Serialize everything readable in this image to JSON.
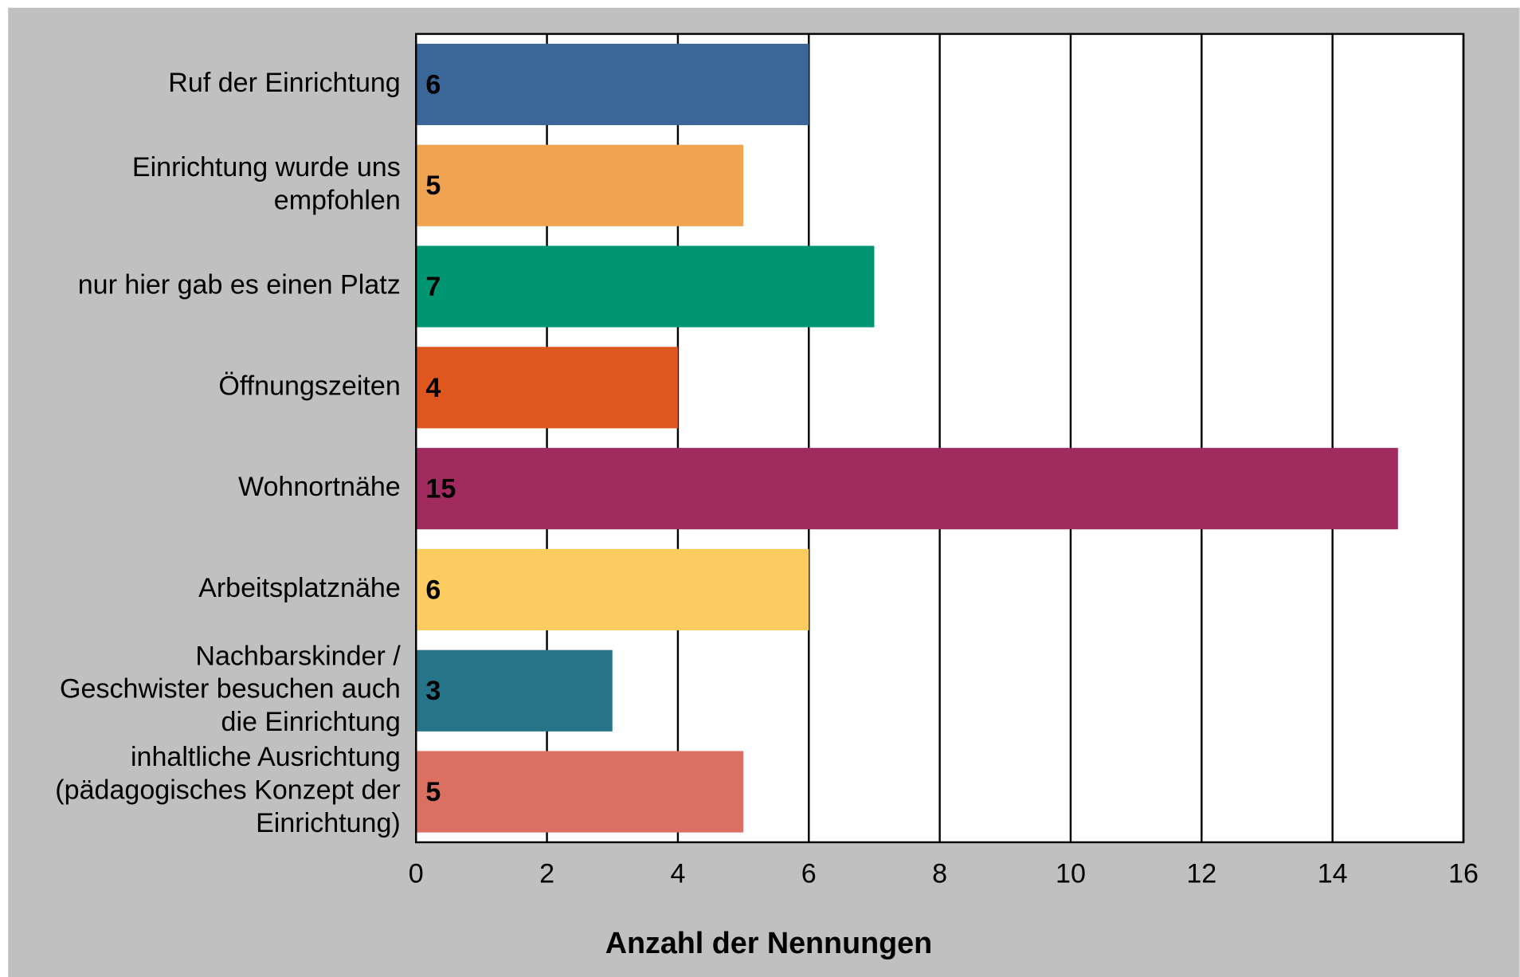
{
  "chart_data": {
    "type": "barh",
    "x_label": "Anzahl der Nennungen",
    "categories": [
      "Ruf der Einrichtung",
      "Einrichtung wurde uns\nempfohlen",
      "nur hier gab es einen Platz",
      "Öffnungszeiten",
      "Wohnortnähe",
      "Arbeitsplatznähe",
      "Nachbarskinder /\nGeschwister besuchen auch\ndie Einrichtung",
      "inhaltliche Ausrichtung\n(pädagogisches Konzept der\nEinrichtung)"
    ],
    "values": [
      6,
      5,
      7,
      4,
      15,
      6,
      3,
      5
    ],
    "colors": [
      "#3a6698",
      "#f0a452",
      "#009672",
      "#de571f",
      "#a12b5f",
      "#fdcc60",
      "#277489",
      "#db7062"
    ],
    "xlim": [
      0,
      16
    ],
    "xticks": [
      0,
      2,
      4,
      6,
      8,
      10,
      12,
      14,
      16
    ],
    "grid": true
  }
}
